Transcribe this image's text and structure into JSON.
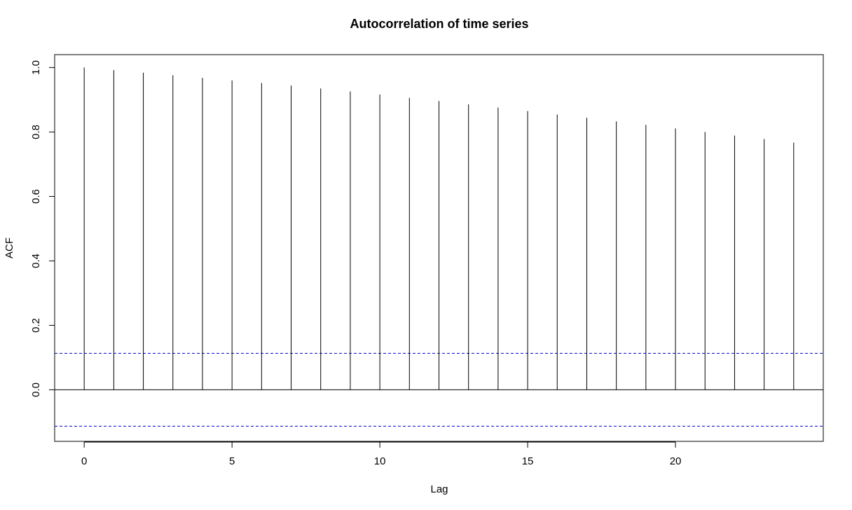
{
  "chart_data": {
    "type": "bar",
    "title": "Autocorrelation of time series",
    "xlabel": "Lag",
    "ylabel": "ACF",
    "x": [
      0,
      1,
      2,
      3,
      4,
      5,
      6,
      7,
      8,
      9,
      10,
      11,
      12,
      13,
      14,
      15,
      16,
      17,
      18,
      19,
      20,
      21,
      22,
      23,
      24
    ],
    "values": [
      1.0,
      0.992,
      0.984,
      0.976,
      0.968,
      0.96,
      0.952,
      0.944,
      0.935,
      0.926,
      0.916,
      0.906,
      0.896,
      0.886,
      0.876,
      0.865,
      0.854,
      0.844,
      0.833,
      0.822,
      0.811,
      0.8,
      0.789,
      0.778,
      0.767
    ],
    "xlim": [
      -1,
      25
    ],
    "ylim": [
      -0.16,
      1.04
    ],
    "xticks": [
      0,
      5,
      10,
      15,
      20
    ],
    "xtick_labels": [
      "0",
      "5",
      "10",
      "15",
      "20"
    ],
    "yticks": [
      0.0,
      0.2,
      0.4,
      0.6,
      0.8,
      1.0
    ],
    "ytick_labels": [
      "0.0",
      "0.2",
      "0.4",
      "0.6",
      "0.8",
      "1.0"
    ],
    "confidence_bounds": [
      0.113,
      -0.113
    ],
    "confidence_color": "#0000cc",
    "bar_color": "#000000",
    "grid": false
  }
}
